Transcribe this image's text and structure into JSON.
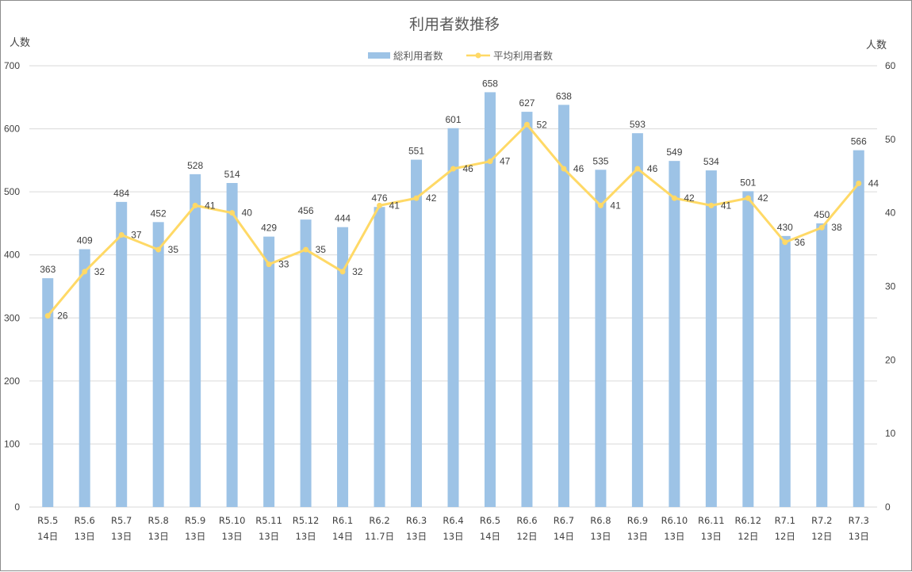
{
  "chart_data": {
    "type": "bar+line",
    "title": "利用者数推移",
    "left_axis_label": "人数",
    "right_axis_label": "人数",
    "left_ylim": [
      0,
      700
    ],
    "left_ticks": [
      0,
      100,
      200,
      300,
      400,
      500,
      600,
      700
    ],
    "right_ylim": [
      0,
      60
    ],
    "right_ticks": [
      0,
      10,
      20,
      30,
      40,
      50,
      60
    ],
    "grid": true,
    "legend_position": "top-center",
    "categories": [
      {
        "month": "R5.5",
        "days": "14日"
      },
      {
        "month": "R5.6",
        "days": "13日"
      },
      {
        "month": "R5.7",
        "days": "13日"
      },
      {
        "month": "R5.8",
        "days": "13日"
      },
      {
        "month": "R5.9",
        "days": "13日"
      },
      {
        "month": "R5.10",
        "days": "13日"
      },
      {
        "month": "R5.11",
        "days": "13日"
      },
      {
        "month": "R5.12",
        "days": "13日"
      },
      {
        "month": "R6.1",
        "days": "14日"
      },
      {
        "month": "R6.2",
        "days": "11.7日"
      },
      {
        "month": "R6.3",
        "days": "13日"
      },
      {
        "month": "R6.4",
        "days": "13日"
      },
      {
        "month": "R6.5",
        "days": "14日"
      },
      {
        "month": "R6.6",
        "days": "12日"
      },
      {
        "month": "R6.7",
        "days": "14日"
      },
      {
        "month": "R6.8",
        "days": "13日"
      },
      {
        "month": "R6.9",
        "days": "13日"
      },
      {
        "month": "R6.10",
        "days": "13日"
      },
      {
        "month": "R6.11",
        "days": "13日"
      },
      {
        "month": "R6.12",
        "days": "12日"
      },
      {
        "month": "R7.1",
        "days": "12日"
      },
      {
        "month": "R7.2",
        "days": "12日"
      },
      {
        "month": "R7.3",
        "days": "13日"
      }
    ],
    "series": [
      {
        "name": "総利用者数",
        "type": "bar",
        "axis": "left",
        "color": "#9DC3E6",
        "values": [
          363,
          409,
          484,
          452,
          528,
          514,
          429,
          456,
          444,
          476,
          551,
          601,
          658,
          627,
          638,
          535,
          593,
          549,
          534,
          501,
          430,
          450,
          566
        ]
      },
      {
        "name": "平均利用者数",
        "type": "line",
        "axis": "right",
        "color": "#FFD966",
        "values": [
          26,
          32,
          37,
          35,
          41,
          40,
          33,
          35,
          32,
          41,
          42,
          46,
          47,
          52,
          46,
          41,
          46,
          42,
          41,
          42,
          36,
          38,
          44
        ],
        "labels": [
          "26",
          "32",
          "37",
          "35",
          "41",
          "40",
          "33",
          "35",
          "32",
          "41",
          "42",
          "46",
          "47",
          "52",
          "46",
          "41",
          "46",
          "42",
          "41",
          "42",
          "36",
          "38",
          "44"
        ]
      }
    ]
  }
}
